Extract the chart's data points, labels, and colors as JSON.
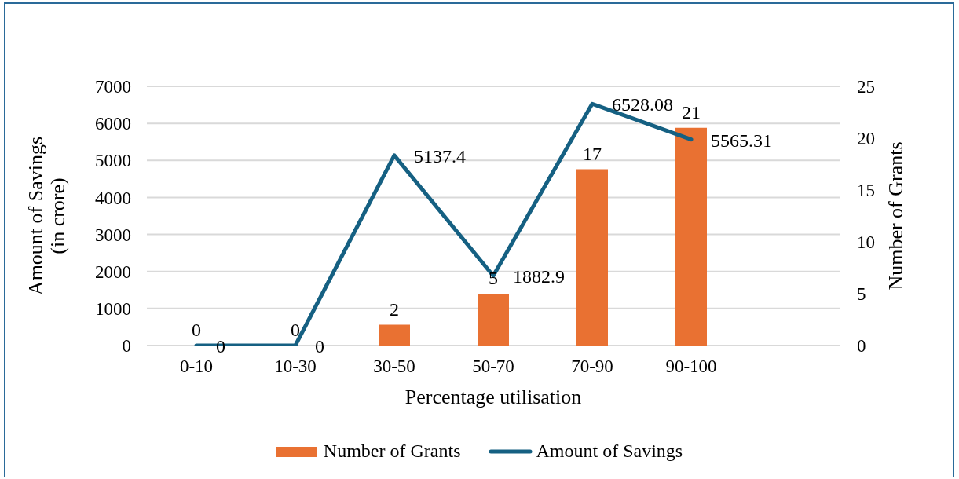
{
  "chart_data": {
    "type": "bar",
    "xlabel": "Percentage utilisation",
    "ylabel": "Amount of Savings (in crore)",
    "y2label": "Number of Grants",
    "categories": [
      "0-10",
      "10-30",
      "30-50",
      "50-70",
      "70-90",
      "90-100",
      null
    ],
    "series": [
      {
        "name": "Number of Grants",
        "color": "#e97132",
        "axis": "y2",
        "values": [
          0,
          0,
          2,
          5,
          17,
          21,
          null
        ]
      },
      {
        "name": "Amount of Savings",
        "type": "line",
        "color": "#156082",
        "values": [
          0,
          0,
          5137.4,
          1882.9,
          6528.08,
          5565.31,
          null
        ]
      }
    ],
    "ylim": [
      0,
      7000
    ],
    "yticks": [
      0,
      1000,
      2000,
      3000,
      4000,
      5000,
      6000,
      7000
    ],
    "y2lim": [
      0,
      25
    ],
    "y2ticks": [
      0,
      5,
      10,
      15,
      20,
      25
    ],
    "grid": "y",
    "legend": "bottom",
    "data_labels": true
  }
}
